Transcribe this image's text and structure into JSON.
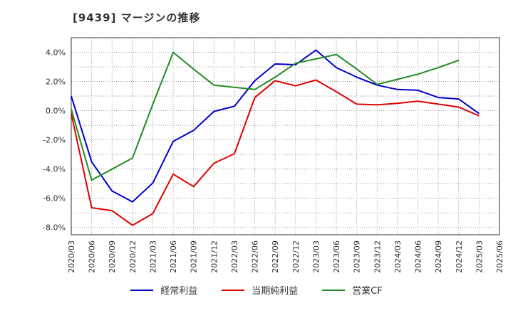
{
  "chart_data": {
    "type": "line",
    "title": "[9439]  マージンの推移",
    "x": [
      "2020/03",
      "2020/06",
      "2020/09",
      "2020/12",
      "2021/03",
      "2021/06",
      "2021/09",
      "2021/12",
      "2022/03",
      "2022/06",
      "2022/09",
      "2022/12",
      "2023/03",
      "2023/06",
      "2023/09",
      "2023/12",
      "2024/03",
      "2024/06",
      "2024/09",
      "2024/12",
      "2025/03",
      "2025/06"
    ],
    "yticks": [
      4.0,
      2.0,
      0.0,
      -2.0,
      -4.0,
      -6.0,
      -8.0
    ],
    "ytick_labels": [
      "4.0%",
      "2.0%",
      "0.0%",
      "-2.0%",
      "-4.0%",
      "-6.0%",
      "-8.0%"
    ],
    "ylim": [
      -8.5,
      5.0
    ],
    "grid": true,
    "legend_position": "bottom",
    "series": [
      {
        "name": "経常利益",
        "color": "#0000cc",
        "values": [
          1.0,
          -3.5,
          -5.5,
          -6.25,
          -4.95,
          -2.1,
          -1.35,
          -0.05,
          0.3,
          2.05,
          3.2,
          3.15,
          4.15,
          2.95,
          2.3,
          1.75,
          1.45,
          1.4,
          0.9,
          0.8,
          -0.2,
          null
        ]
      },
      {
        "name": "当期純利益",
        "color": "#e00000",
        "values": [
          -0.2,
          -6.65,
          -6.85,
          -7.85,
          -7.05,
          -4.35,
          -5.2,
          -3.6,
          -2.95,
          0.9,
          2.05,
          1.7,
          2.1,
          1.3,
          0.45,
          0.4,
          0.5,
          0.65,
          0.45,
          0.25,
          -0.35,
          null
        ]
      },
      {
        "name": "営業CF",
        "color": "#228b22",
        "values": [
          0.1,
          -4.75,
          -4.0,
          -3.25,
          0.45,
          4.0,
          2.85,
          1.75,
          1.6,
          1.45,
          2.3,
          3.25,
          3.55,
          3.85,
          2.85,
          1.8,
          2.15,
          2.5,
          2.95,
          3.45,
          null,
          null
        ]
      }
    ]
  }
}
